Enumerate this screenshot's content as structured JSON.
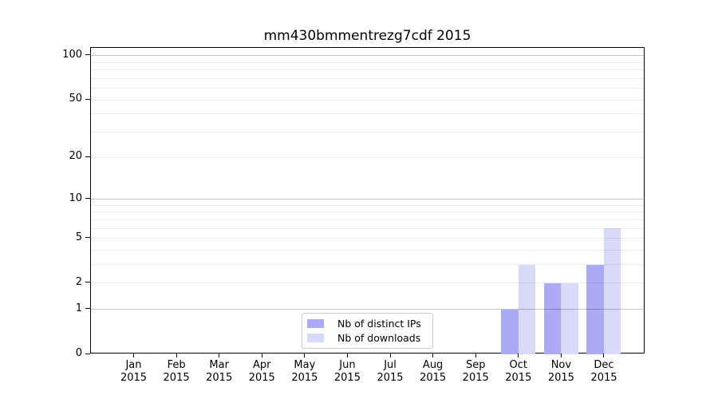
{
  "title": "mm430bmmentrezg7cdf 2015",
  "chart_data": {
    "type": "bar",
    "title": "mm430bmmentrezg7cdf 2015",
    "yscale": "log1p",
    "categories": [
      "Jan",
      "Feb",
      "Mar",
      "Apr",
      "May",
      "Jun",
      "Jul",
      "Aug",
      "Sep",
      "Oct",
      "Nov",
      "Dec"
    ],
    "year": "2015",
    "series": [
      {
        "name": "Nb of distinct IPs",
        "key": "distinct-ips",
        "color": "#aaaaf5",
        "values": [
          0,
          0,
          0,
          0,
          0,
          0,
          0,
          0,
          0,
          1,
          2,
          3
        ]
      },
      {
        "name": "Nb of downloads",
        "key": "downloads",
        "color": "#d9d9fa",
        "values": [
          0,
          0,
          0,
          0,
          0,
          0,
          0,
          0,
          0,
          3,
          2,
          6
        ]
      }
    ],
    "y_ticks": [
      0,
      1,
      2,
      5,
      10,
      20,
      50,
      100
    ],
    "ylim": [
      0,
      113
    ],
    "grid": {
      "on": true,
      "major_levels": [
        1,
        10,
        100
      ],
      "minor_levels": [
        2,
        3,
        4,
        5,
        6,
        7,
        8,
        9,
        20,
        30,
        40,
        50,
        60,
        70,
        80,
        90
      ]
    },
    "legend": {
      "position": "lower center"
    }
  }
}
